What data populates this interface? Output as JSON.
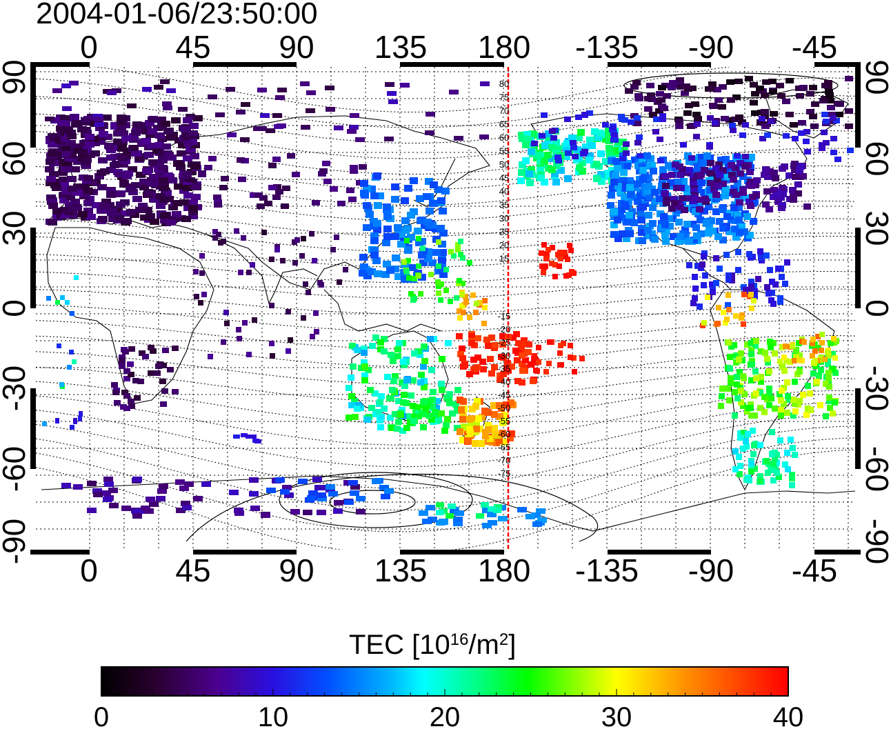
{
  "title": "2004-01-06/23:50:00",
  "map": {
    "top_lon_labels": [
      "0",
      "45",
      "90",
      "135",
      "180",
      "-135",
      "-90",
      "-45"
    ],
    "bottom_lon_labels": [
      "0",
      "45",
      "90",
      "135",
      "180",
      "-135",
      "-90",
      "-45"
    ],
    "left_lat_labels": [
      "90",
      "60",
      "30",
      "0",
      "-30",
      "-60",
      "-90"
    ],
    "right_lat_labels": [
      "90",
      "60",
      "30",
      "0",
      "-30",
      "-60",
      "-90"
    ],
    "terminator_color": "#ff0000",
    "contour_labels": [
      "80",
      "75",
      "70",
      "65",
      "60",
      "55",
      "50",
      "45",
      "40",
      "35",
      "30",
      "25",
      "20",
      "15",
      "-15",
      "-20",
      "-25",
      "-30",
      "-35",
      "-40",
      "-45",
      "-50",
      "-55",
      "-60",
      "-65",
      "-70",
      "-75"
    ]
  },
  "colorbar": {
    "label_main": "TEC  [10",
    "label_sup1": "16",
    "label_mid": "/m",
    "label_sup2": "2",
    "label_end": "]",
    "ticks": [
      "0",
      "10",
      "20",
      "30",
      "40"
    ],
    "range": [
      0,
      40
    ]
  }
}
